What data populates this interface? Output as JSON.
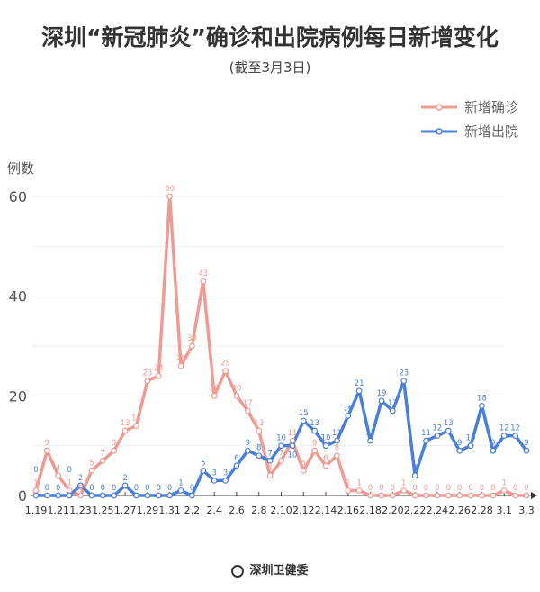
{
  "chart_data": {
    "type": "line",
    "title": "深圳“新冠肺炎”确诊和出院病例每日新增变化",
    "subtitle": "(截至3月3日)",
    "ylabel": "例数",
    "ylim": [
      0,
      60
    ],
    "yticks": [
      0,
      20,
      40,
      60
    ],
    "grid": true,
    "legend_position": "top-right",
    "x": [
      "1.19",
      "1.20",
      "1.21",
      "1.22",
      "1.23",
      "1.24",
      "1.25",
      "1.26",
      "1.27",
      "1.28",
      "1.29",
      "1.30",
      "1.31",
      "2.1",
      "2.2",
      "2.3",
      "2.4",
      "2.5",
      "2.6",
      "2.7",
      "2.8",
      "2.9",
      "2.10",
      "2.11",
      "2.12",
      "2.13",
      "2.14",
      "2.15",
      "2.16",
      "2.17",
      "2.18",
      "2.19",
      "2.20",
      "2.21",
      "2.22",
      "2.23",
      "2.24",
      "2.25",
      "2.26",
      "2.27",
      "2.28",
      "2.29",
      "3.1",
      "3.2",
      "3.3"
    ],
    "xtick_labels": [
      "1.19",
      "1.21",
      "1.23",
      "1.25",
      "1.27",
      "1.29",
      "1.31",
      "2.2",
      "2.4",
      "2.6",
      "2.8",
      "2.10",
      "2.12",
      "2.14",
      "2.16",
      "2.18",
      "2.20",
      "2.22",
      "2.24",
      "2.26",
      "2.28",
      "3.1",
      "3.3"
    ],
    "series": [
      {
        "name": "新增确诊",
        "color": "#f09a94",
        "values": [
          1,
          9,
          4,
          1,
          0,
          5,
          7,
          9,
          13,
          14,
          23,
          24,
          60,
          26,
          30,
          43,
          20,
          25,
          20,
          17,
          13,
          4,
          7,
          11,
          5,
          9,
          6,
          8,
          1,
          1,
          0,
          0,
          0,
          1,
          0,
          0,
          0,
          0,
          0,
          0,
          0,
          0,
          1,
          0,
          0
        ]
      },
      {
        "name": "新增出院",
        "color": "#4a7fd8",
        "values": [
          0,
          0,
          0,
          0,
          2,
          0,
          0,
          0,
          2,
          0,
          0,
          0,
          0,
          1,
          0,
          5,
          3,
          3,
          6,
          9,
          8,
          7,
          10,
          10,
          15,
          13,
          10,
          11,
          16,
          21,
          11,
          19,
          17,
          23,
          4,
          11,
          12,
          13,
          9,
          10,
          18,
          9,
          12,
          12,
          9
        ]
      }
    ]
  },
  "footer": {
    "logo_text": "深圳卫健委"
  }
}
